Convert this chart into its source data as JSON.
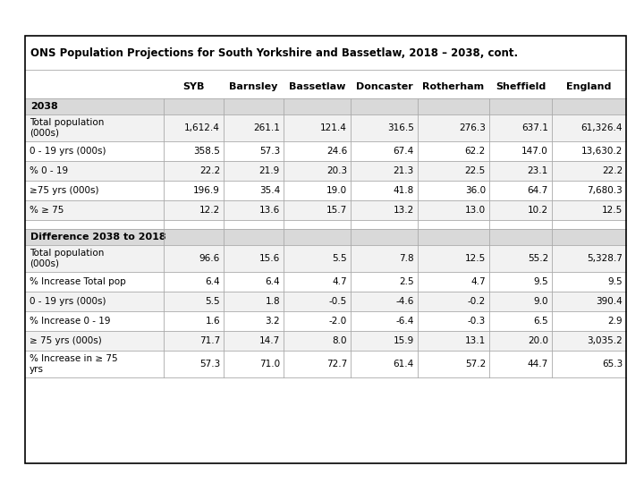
{
  "title": "ONS Population Projections for South Yorkshire and Bassetlaw, 2018 – 2038, cont.",
  "columns": [
    "",
    "SYB",
    "Barnsley",
    "Bassetlaw",
    "Doncaster",
    "Rotherham",
    "Sheffield",
    "England"
  ],
  "section1_label": "2038",
  "section2_label": "Difference 2038 to 2018",
  "rows_section1": [
    [
      "Total population\n(000s)",
      "1,612.4",
      "261.1",
      "121.4",
      "316.5",
      "276.3",
      "637.1",
      "61,326.4"
    ],
    [
      "0 - 19 yrs (000s)",
      "358.5",
      "57.3",
      "24.6",
      "67.4",
      "62.2",
      "147.0",
      "13,630.2"
    ],
    [
      "% 0 - 19",
      "22.2",
      "21.9",
      "20.3",
      "21.3",
      "22.5",
      "23.1",
      "22.2"
    ],
    [
      "≥75 yrs (000s)",
      "196.9",
      "35.4",
      "19.0",
      "41.8",
      "36.0",
      "64.7",
      "7,680.3"
    ],
    [
      "% ≥ 75",
      "12.2",
      "13.6",
      "15.7",
      "13.2",
      "13.0",
      "10.2",
      "12.5"
    ]
  ],
  "rows_section2": [
    [
      "Total population\n(000s)",
      "96.6",
      "15.6",
      "5.5",
      "7.8",
      "12.5",
      "55.2",
      "5,328.7"
    ],
    [
      "% Increase Total pop",
      "6.4",
      "6.4",
      "4.7",
      "2.5",
      "4.7",
      "9.5",
      "9.5"
    ],
    [
      "0 - 19 yrs (000s)",
      "5.5",
      "1.8",
      "-0.5",
      "-4.6",
      "-0.2",
      "9.0",
      "390.4"
    ],
    [
      "% Increase 0 - 19",
      "1.6",
      "3.2",
      "-2.0",
      "-6.4",
      "-0.3",
      "6.5",
      "2.9"
    ],
    [
      "≥ 75 yrs (000s)",
      "71.7",
      "14.7",
      "8.0",
      "15.9",
      "13.1",
      "20.0",
      "3,035.2"
    ],
    [
      "% Increase in ≥ 75\nyrs",
      "57.3",
      "71.0",
      "72.7",
      "61.4",
      "57.2",
      "44.7",
      "65.3"
    ]
  ],
  "bg_color": "#ffffff",
  "border_color": "#000000",
  "line_color": "#aaaaaa",
  "section_header_bg": "#d9d9d9",
  "row_bg_alt": "#f2f2f2",
  "row_bg_normal": "#ffffff",
  "text_color": "#000000",
  "font_size": 7.5,
  "header_font_size": 8.0,
  "title_font_size": 8.5,
  "fig_width": 7.2,
  "fig_height": 5.4,
  "dpi": 100
}
